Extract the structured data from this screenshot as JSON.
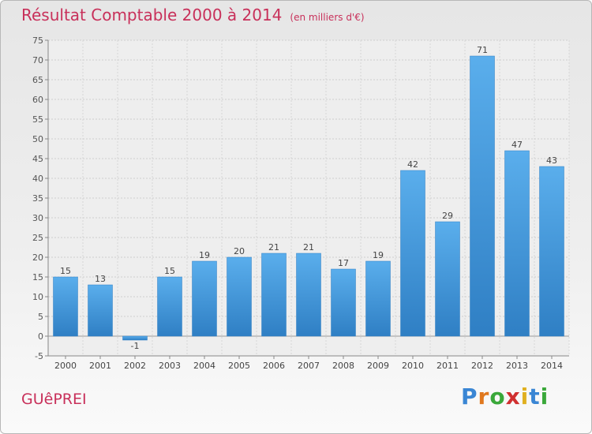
{
  "chart_data": {
    "type": "bar",
    "title": "Résultat Comptable 2000 à 2014",
    "subtitle": "(en milliers d'€)",
    "categories": [
      "2000",
      "2001",
      "2002",
      "2003",
      "2004",
      "2005",
      "2006",
      "2007",
      "2008",
      "2009",
      "2010",
      "2011",
      "2012",
      "2013",
      "2014"
    ],
    "values": [
      15,
      13,
      -1,
      15,
      19,
      20,
      21,
      21,
      17,
      19,
      42,
      29,
      71,
      47,
      43
    ],
    "value_labels": [
      "15",
      "13",
      "-1",
      "15",
      "19",
      "20",
      "21",
      "21",
      "17",
      "19",
      "42",
      "29",
      "71",
      "47",
      "43"
    ],
    "ylim": [
      -5,
      75
    ],
    "yticks": [
      "-5",
      "0",
      "5",
      "10",
      "15",
      "20",
      "25",
      "30",
      "35",
      "40",
      "45",
      "50",
      "55",
      "60",
      "65",
      "70",
      "75"
    ],
    "grid": true,
    "bar_color": "#4a9fe0"
  },
  "commune": "GUêPREI",
  "logo": {
    "letters": [
      "P",
      "r",
      "o",
      "x",
      "i",
      "t",
      "i"
    ],
    "colors": [
      "#3a86d4",
      "#e0781e",
      "#3aa83a",
      "#d03030",
      "#e0b020",
      "#3a86d4",
      "#3aa83a"
    ]
  }
}
